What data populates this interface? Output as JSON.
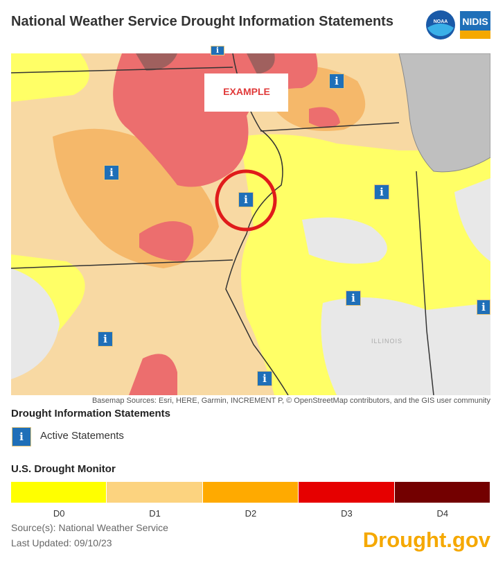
{
  "header": {
    "title": "National Weather Service Drought Information Statements",
    "logo_noaa": "NOAA",
    "logo_nidis": "NIDIS"
  },
  "map": {
    "example_label": "EXAMPLE",
    "statement_icon": "i",
    "state_label": "ILLINOIS",
    "attribution": "Basemap Sources: Esri, HERE, Garmin, INCREMENT P, © OpenStreetMap contributors, and the GIS user community"
  },
  "legend": {
    "statements_heading": "Drought Information Statements",
    "statements_item": "Active Statements",
    "monitor_heading": "U.S. Drought Monitor",
    "categories": [
      {
        "label": "D0",
        "color": "#ffff00"
      },
      {
        "label": "D1",
        "color": "#fcd37f"
      },
      {
        "label": "D2",
        "color": "#ffaa00"
      },
      {
        "label": "D3",
        "color": "#e60000"
      },
      {
        "label": "D4",
        "color": "#730000"
      }
    ]
  },
  "footer": {
    "source": "Source(s): National Weather Service",
    "updated": "Last Updated: 09/10/23",
    "brand": "Drought.gov"
  }
}
